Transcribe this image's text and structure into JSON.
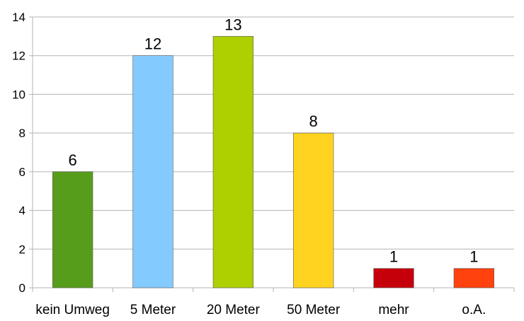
{
  "chart_data": {
    "type": "bar",
    "title": "",
    "xlabel": "",
    "ylabel": "",
    "categories": [
      "kein Umweg",
      "5 Meter",
      "20 Meter",
      "50 Meter",
      "mehr",
      "o.A."
    ],
    "values": [
      6,
      12,
      13,
      8,
      1,
      1
    ],
    "colors": [
      "#579D1C",
      "#83CAFF",
      "#AECF00",
      "#FFD320",
      "#C5000B",
      "#FF420E"
    ],
    "ylim": [
      0,
      14
    ],
    "yticks": [
      0,
      2,
      4,
      6,
      8,
      10,
      12,
      14
    ],
    "grid": true,
    "legend": "none",
    "data_labels": true
  }
}
